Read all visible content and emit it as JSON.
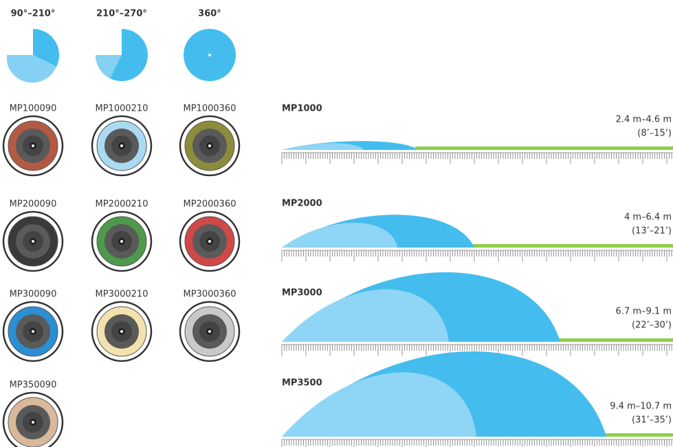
{
  "arc_types": [
    {
      "label": "90°–210°"
    },
    {
      "label": "210°–270°"
    },
    {
      "label": "360°"
    }
  ],
  "nozzle_rows": [
    [
      {
        "model": "MP100090",
        "color": "#b45a44"
      },
      {
        "model": "MP1000210",
        "color": "#a9daf2"
      },
      {
        "model": "MP1000360",
        "color": "#8c8c3c"
      }
    ],
    [
      {
        "model": "MP200090",
        "color": "#3a3a3a"
      },
      {
        "model": "MP2000210",
        "color": "#4e9a4a"
      },
      {
        "model": "MP2000360",
        "color": "#d04848"
      }
    ],
    [
      {
        "model": "MP300090",
        "color": "#2b8fd4"
      },
      {
        "model": "MP3000210",
        "color": "#f4e2ae"
      },
      {
        "model": "MP3000360",
        "color": "#c9c9c9"
      }
    ],
    [
      {
        "model": "MP350090",
        "color": "#d9b99b"
      }
    ]
  ],
  "throw_rows": [
    {
      "name": "MP1000",
      "metric": "2.4 m–4.6 m",
      "imperial": "(8’–15’)"
    },
    {
      "name": "MP2000",
      "metric": "4 m–6.4 m",
      "imperial": "(13’–21’)"
    },
    {
      "name": "MP3000",
      "metric": "6.7 m–9.1 m",
      "imperial": "(22’–30’)"
    },
    {
      "name": "MP3500",
      "metric": "9.4 m–10.7 m",
      "imperial": "(31’–35’)"
    }
  ]
}
